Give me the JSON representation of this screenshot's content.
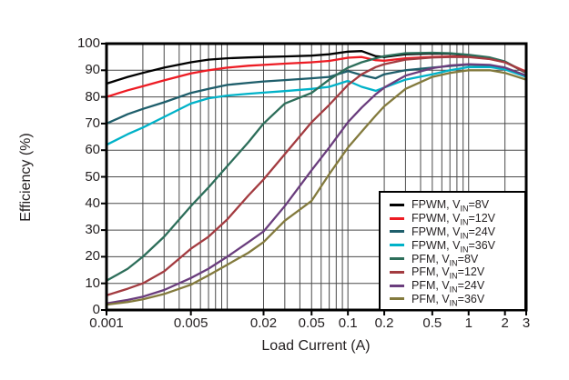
{
  "chart_data": {
    "type": "line",
    "title": "",
    "xlabel": "Load Current (A)",
    "ylabel": "Efficiency (%)",
    "x_scale": "log",
    "xlim": [
      0.001,
      3
    ],
    "ylim": [
      0,
      100
    ],
    "grid": true,
    "legend_position": "lower-right",
    "y_ticks": [
      0,
      10,
      20,
      30,
      40,
      50,
      60,
      70,
      80,
      90,
      100
    ],
    "x_tick_labels": [
      {
        "value": 0.001,
        "label": "0.001"
      },
      {
        "value": 0.005,
        "label": "0.005"
      },
      {
        "value": 0.02,
        "label": "0.02"
      },
      {
        "value": 0.05,
        "label": "0.05"
      },
      {
        "value": 0.1,
        "label": "0.1"
      },
      {
        "value": 0.2,
        "label": "0.2"
      },
      {
        "value": 0.5,
        "label": "0.5"
      },
      {
        "value": 1,
        "label": "1"
      },
      {
        "value": 2,
        "label": "2"
      },
      {
        "value": 3,
        "label": "3"
      }
    ],
    "x": [
      0.001,
      0.0015,
      0.002,
      0.003,
      0.005,
      0.007,
      0.01,
      0.015,
      0.02,
      0.03,
      0.05,
      0.07,
      0.1,
      0.13,
      0.17,
      0.2,
      0.3,
      0.5,
      0.7,
      1,
      1.5,
      2,
      3
    ],
    "series": [
      {
        "name": "FPWM, VIN=8V",
        "legend": {
          "pre": "FPWM, V",
          "sub": "IN",
          "post": "=8V"
        },
        "color": "#000000",
        "y": [
          85,
          87.5,
          89,
          91,
          93,
          94,
          94.5,
          94.8,
          95,
          95.2,
          95.5,
          96,
          97,
          97.2,
          95.3,
          95,
          96,
          96.3,
          96.2,
          95.7,
          94.7,
          93.2,
          89
        ]
      },
      {
        "name": "FPWM, VIN=12V",
        "legend": {
          "pre": "FPWM, V",
          "sub": "IN",
          "post": "=12V"
        },
        "color": "#ed1c24",
        "y": [
          80,
          82.5,
          84,
          86.2,
          88.8,
          90,
          91,
          91.7,
          92,
          92.5,
          93,
          93.5,
          94.7,
          95,
          93.8,
          93.6,
          94.5,
          95,
          95.2,
          95.1,
          94.3,
          93,
          89.5
        ]
      },
      {
        "name": "FPWM, VIN=24V",
        "legend": {
          "pre": "FPWM, V",
          "sub": "IN",
          "post": "=24V"
        },
        "color": "#1e5e6b",
        "y": [
          70,
          73.5,
          75.5,
          78,
          81.5,
          83,
          84.5,
          85.3,
          85.8,
          86.3,
          87,
          87.5,
          89.7,
          88.2,
          87,
          88.5,
          90,
          91,
          91.6,
          92.1,
          91.8,
          91,
          88
        ]
      },
      {
        "name": "FPWM, VIN=36V",
        "legend": {
          "pre": "FPWM, V",
          "sub": "IN",
          "post": "=36V"
        },
        "color": "#00b2c8",
        "y": [
          62,
          66,
          68.5,
          72.5,
          77.5,
          79.5,
          80.5,
          81.2,
          81.6,
          82.2,
          83,
          83.8,
          86,
          83.8,
          82.3,
          83.5,
          86.5,
          88.5,
          90,
          91.2,
          91.2,
          90.3,
          87.5
        ]
      },
      {
        "name": "PFM, VIN=8V",
        "legend": {
          "pre": "PFM, V",
          "sub": "IN",
          "post": "=8V"
        },
        "color": "#2d6e5a",
        "y": [
          11,
          15.5,
          20,
          27.5,
          39,
          46,
          54,
          63,
          70,
          77.5,
          81.5,
          86.5,
          91,
          93,
          94.5,
          95.3,
          96.4,
          96.6,
          96.4,
          95.8,
          94.8,
          93.3,
          89
        ]
      },
      {
        "name": "PFM, VIN=12V",
        "legend": {
          "pre": "PFM, V",
          "sub": "IN",
          "post": "=12V"
        },
        "color": "#a33b40",
        "y": [
          5.5,
          8,
          10,
          14.5,
          23,
          27.5,
          34,
          43,
          49,
          58.5,
          70.5,
          77,
          84.5,
          88.5,
          91.2,
          92.3,
          94,
          94.8,
          95,
          95,
          94.2,
          93,
          89.3
        ]
      },
      {
        "name": "PFM, VIN=24V",
        "legend": {
          "pre": "PFM, V",
          "sub": "IN",
          "post": "=24V"
        },
        "color": "#6a3d7d",
        "y": [
          2.5,
          3.8,
          5,
          7.5,
          12,
          15.5,
          20,
          25.5,
          29.5,
          39,
          52.5,
          61,
          70.5,
          76,
          81,
          83.5,
          88,
          90.8,
          91.8,
          92.3,
          92,
          91,
          88
        ]
      },
      {
        "name": "PFM, VIN=36V",
        "legend": {
          "pre": "PFM, V",
          "sub": "IN",
          "post": "=36V"
        },
        "color": "#837a3d",
        "y": [
          2,
          3,
          4,
          6,
          9.5,
          13,
          17,
          21.5,
          25.5,
          33.5,
          41,
          51,
          61,
          67,
          73,
          76.5,
          83,
          87.5,
          89,
          90,
          90,
          89,
          86.5
        ]
      }
    ],
    "style": {
      "frame_color": "#000000",
      "grid_color": "#4a4a4a",
      "text_color": "#231f20",
      "background": "#ffffff"
    }
  }
}
